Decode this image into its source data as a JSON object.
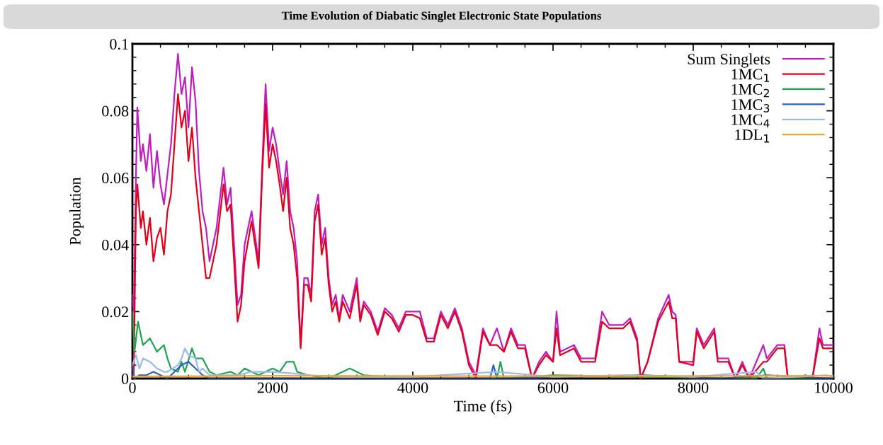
{
  "chart_data": {
    "type": "line",
    "title": "Time Evolution of Diabatic Singlet Electronic State Populations",
    "xlabel": "Time (fs)",
    "ylabel": "Population",
    "xlim": [
      0,
      10000
    ],
    "xticks": [
      0,
      2000,
      4000,
      6000,
      8000,
      10000
    ],
    "ylim": [
      0,
      0.1
    ],
    "yticks": [
      {
        "value": 0,
        "label": "0"
      },
      {
        "value": 0.02,
        "label": "0.02"
      },
      {
        "value": 0.04,
        "label": "0.04"
      },
      {
        "value": 0.06,
        "label": "0.06"
      },
      {
        "value": 0.08,
        "label": "0.08"
      },
      {
        "value": 0.1,
        "label": "0.1"
      }
    ],
    "legend": "top right",
    "grid": false,
    "marker": "none",
    "line_style": "solid",
    "series": [
      {
        "name": "Sum Singlets",
        "color": "#c01fc0",
        "x": [
          0,
          20,
          50,
          70,
          120,
          150,
          200,
          250,
          300,
          350,
          400,
          450,
          500,
          550,
          600,
          650,
          700,
          750,
          800,
          850,
          900,
          950,
          1000,
          1050,
          1100,
          1200,
          1300,
          1350,
          1400,
          1450,
          1500,
          1550,
          1600,
          1700,
          1800,
          1850,
          1900,
          1950,
          2000,
          2050,
          2100,
          2150,
          2200,
          2250,
          2300,
          2350,
          2400,
          2450,
          2500,
          2550,
          2600,
          2650,
          2700,
          2750,
          2800,
          2850,
          2900,
          2950,
          3000,
          3100,
          3200,
          3250,
          3300,
          3400,
          3500,
          3600,
          3700,
          3800,
          3900,
          4000,
          4100,
          4200,
          4300,
          4400,
          4500,
          4600,
          4700,
          4800,
          4900,
          5000,
          5100,
          5200,
          5300,
          5400,
          5500,
          5600,
          5700,
          5800,
          5900,
          6000,
          6050,
          6100,
          6300,
          6400,
          6600,
          6700,
          6800,
          7000,
          7100,
          7200,
          7250,
          7350,
          7500,
          7650,
          7700,
          7750,
          7800,
          8000,
          8050,
          8150,
          8300,
          8350,
          8500,
          8600,
          8700,
          8800,
          9000,
          9050,
          9200,
          9300,
          9350,
          9500,
          9600,
          9700,
          9800,
          9850,
          10000
        ],
        "values": [
          0.025,
          0.02,
          0.06,
          0.081,
          0.065,
          0.07,
          0.062,
          0.073,
          0.057,
          0.068,
          0.058,
          0.052,
          0.061,
          0.07,
          0.085,
          0.097,
          0.085,
          0.09,
          0.075,
          0.093,
          0.083,
          0.062,
          0.05,
          0.045,
          0.035,
          0.045,
          0.063,
          0.052,
          0.057,
          0.04,
          0.022,
          0.025,
          0.04,
          0.05,
          0.035,
          0.063,
          0.088,
          0.068,
          0.075,
          0.07,
          0.062,
          0.055,
          0.065,
          0.05,
          0.045,
          0.035,
          0.01,
          0.03,
          0.03,
          0.025,
          0.05,
          0.055,
          0.04,
          0.045,
          0.03,
          0.022,
          0.025,
          0.018,
          0.025,
          0.02,
          0.03,
          0.018,
          0.023,
          0.02,
          0.014,
          0.021,
          0.019,
          0.015,
          0.02,
          0.02,
          0.02,
          0.012,
          0.012,
          0.02,
          0.016,
          0.021,
          0.015,
          0.005,
          0.001,
          0.015,
          0.01,
          0.015,
          0.008,
          0.015,
          0.01,
          0.01,
          0.0,
          0.005,
          0.008,
          0.005,
          0.02,
          0.008,
          0.01,
          0.006,
          0.006,
          0.02,
          0.016,
          0.016,
          0.018,
          0.012,
          0.0,
          0.005,
          0.018,
          0.025,
          0.02,
          0.019,
          0.005,
          0.005,
          0.015,
          0.01,
          0.015,
          0.006,
          0.006,
          0.0,
          0.005,
          0.0,
          0.01,
          0.006,
          0.01,
          0.01,
          0.0,
          0.0,
          0.001,
          0.0,
          0.015,
          0.01,
          0.01
        ]
      },
      {
        "name": "1MC$_{1}$",
        "color": "#e3001b",
        "x": [
          0,
          20,
          50,
          70,
          120,
          150,
          200,
          250,
          300,
          350,
          400,
          450,
          500,
          550,
          600,
          650,
          700,
          750,
          800,
          850,
          900,
          950,
          1000,
          1050,
          1100,
          1200,
          1300,
          1350,
          1400,
          1450,
          1500,
          1550,
          1600,
          1700,
          1800,
          1850,
          1900,
          1950,
          2000,
          2050,
          2100,
          2150,
          2200,
          2250,
          2300,
          2350,
          2400,
          2450,
          2500,
          2550,
          2600,
          2650,
          2700,
          2750,
          2800,
          2850,
          2900,
          2950,
          3000,
          3100,
          3200,
          3250,
          3300,
          3400,
          3500,
          3600,
          3700,
          3800,
          3900,
          4000,
          4100,
          4200,
          4300,
          4400,
          4500,
          4600,
          4700,
          4800,
          4900,
          5000,
          5100,
          5200,
          5300,
          5400,
          5500,
          5600,
          5700,
          5800,
          5900,
          6000,
          6050,
          6100,
          6300,
          6400,
          6600,
          6700,
          6800,
          7000,
          7100,
          7200,
          7250,
          7350,
          7500,
          7650,
          7700,
          7750,
          7800,
          8000,
          8050,
          8150,
          8300,
          8350,
          8500,
          8600,
          8700,
          8800,
          9000,
          9050,
          9200,
          9300,
          9350,
          9500,
          9600,
          9700,
          9800,
          9850,
          10000
        ],
        "values": [
          0.0,
          0.002,
          0.05,
          0.058,
          0.045,
          0.05,
          0.04,
          0.048,
          0.035,
          0.042,
          0.045,
          0.037,
          0.05,
          0.055,
          0.07,
          0.085,
          0.075,
          0.08,
          0.065,
          0.075,
          0.06,
          0.05,
          0.04,
          0.03,
          0.03,
          0.04,
          0.058,
          0.05,
          0.052,
          0.035,
          0.017,
          0.022,
          0.035,
          0.047,
          0.033,
          0.06,
          0.082,
          0.063,
          0.07,
          0.065,
          0.058,
          0.05,
          0.06,
          0.045,
          0.04,
          0.03,
          0.009,
          0.028,
          0.028,
          0.023,
          0.047,
          0.052,
          0.037,
          0.042,
          0.028,
          0.02,
          0.023,
          0.017,
          0.023,
          0.018,
          0.028,
          0.017,
          0.022,
          0.019,
          0.013,
          0.02,
          0.018,
          0.014,
          0.019,
          0.019,
          0.018,
          0.011,
          0.011,
          0.019,
          0.015,
          0.02,
          0.014,
          0.004,
          0.0,
          0.014,
          0.01,
          0.01,
          0.008,
          0.014,
          0.009,
          0.009,
          0.0,
          0.004,
          0.007,
          0.005,
          0.015,
          0.007,
          0.009,
          0.005,
          0.005,
          0.017,
          0.015,
          0.015,
          0.017,
          0.011,
          0.0,
          0.005,
          0.017,
          0.023,
          0.018,
          0.018,
          0.005,
          0.004,
          0.014,
          0.009,
          0.014,
          0.005,
          0.005,
          0.0,
          0.004,
          0.0,
          0.005,
          0.005,
          0.009,
          0.009,
          0.0,
          0.0,
          0.0,
          0.0,
          0.012,
          0.009,
          0.009
        ]
      },
      {
        "name": "1MC$_{2}$",
        "color": "#1ea64e",
        "x": [
          0,
          30,
          80,
          150,
          250,
          350,
          450,
          500,
          550,
          650,
          700,
          750,
          850,
          900,
          1000,
          1100,
          1200,
          1400,
          1500,
          1600,
          1800,
          2000,
          2100,
          2200,
          2300,
          2350,
          2500,
          2800,
          3100,
          3300,
          4000,
          4600,
          5200,
          5250,
          5300,
          6000,
          8900,
          9000,
          9050,
          10000
        ],
        "values": [
          0.02,
          0.008,
          0.017,
          0.01,
          0.012,
          0.008,
          0.01,
          0.006,
          0.003,
          0.002,
          0.005,
          0.002,
          0.009,
          0.006,
          0.006,
          0.002,
          0.001,
          0.002,
          0.001,
          0.003,
          0.001,
          0.003,
          0.002,
          0.005,
          0.005,
          0.002,
          0.001,
          0.0,
          0.003,
          0.001,
          0.0,
          0.0,
          0.0,
          0.005,
          0.0,
          0.001,
          0.0,
          0.003,
          0.0,
          0.0
        ]
      },
      {
        "name": "1MC$_{3}$",
        "color": "#2c5fc0",
        "x": [
          0,
          30,
          100,
          200,
          300,
          400,
          500,
          600,
          700,
          800,
          900,
          1000,
          1100,
          2000,
          5100,
          5150,
          5200,
          7300,
          8400,
          9050,
          10000
        ],
        "values": [
          0.004,
          0.0,
          0.001,
          0.001,
          0.002,
          0.001,
          0.0,
          0.002,
          0.004,
          0.005,
          0.003,
          0.001,
          0.0,
          0.0,
          0.0,
          0.004,
          0.0,
          0.001,
          0.0,
          0.001,
          0.0
        ]
      },
      {
        "name": "1MC$_{4}$",
        "color": "#9ab9f5",
        "x": [
          0,
          50,
          100,
          150,
          250,
          350,
          450,
          500,
          650,
          700,
          750,
          800,
          900,
          950,
          1000,
          1100,
          1500,
          1700,
          2000,
          2300,
          2500,
          3000,
          4000,
          5200,
          6000,
          7000,
          8000,
          8900,
          9000,
          9900,
          10000
        ],
        "values": [
          0.004,
          0.007,
          0.003,
          0.006,
          0.005,
          0.003,
          0.002,
          0.002,
          0.004,
          0.006,
          0.009,
          0.007,
          0.006,
          0.002,
          0.003,
          0.001,
          0.001,
          0.002,
          0.002,
          0.0015,
          0.001,
          0.0005,
          0.0005,
          0.002,
          0.0005,
          0.001,
          0.0005,
          0.002,
          0.0,
          0.001,
          0.0005
        ]
      },
      {
        "name": "1DL$_{1}$",
        "color": "#f5a623",
        "x": [
          0,
          2000,
          5000,
          10000
        ],
        "values": [
          0.0006,
          0.0008,
          0.0007,
          0.0008
        ]
      }
    ]
  }
}
